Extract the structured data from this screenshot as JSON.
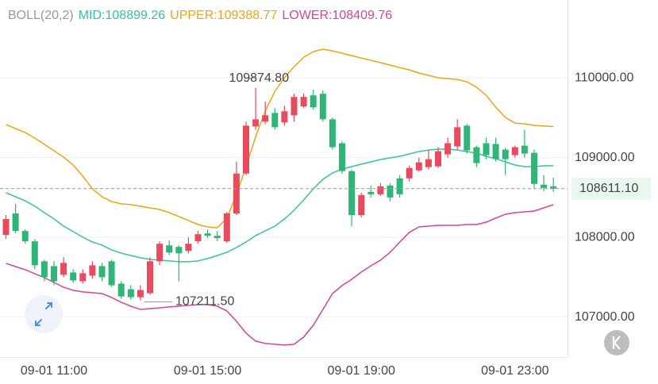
{
  "chart_data": {
    "type": "candlestick",
    "categories": [
      null,
      null,
      null,
      null,
      null,
      "09-01 11:00",
      null,
      null,
      null,
      null,
      null,
      null,
      null,
      null,
      null,
      null,
      null,
      null,
      null,
      null,
      null,
      "09-01 15:00",
      null,
      null,
      null,
      null,
      null,
      null,
      null,
      null,
      null,
      null,
      null,
      null,
      null,
      null,
      null,
      "09-01 19:00",
      null,
      null,
      null,
      null,
      null,
      null,
      null,
      null,
      null,
      null,
      null,
      null,
      null,
      null,
      null,
      "09-01 23:00",
      null,
      null,
      null,
      null
    ],
    "open": [
      108030,
      108300,
      108080,
      107950,
      107700,
      107640,
      107530,
      107560,
      107450,
      107520,
      107640,
      107700,
      107420,
      107350,
      107250,
      107300,
      107700,
      107900,
      107880,
      107830,
      107950,
      108050,
      108020,
      107950,
      108300,
      108800,
      109390,
      109450,
      109560,
      109440,
      109530,
      109640,
      109780,
      109800,
      109480,
      109180,
      108830,
      108280,
      108570,
      108540,
      108650,
      108740,
      108740,
      108840,
      108880,
      108890,
      109040,
      109140,
      109400,
      109130,
      109180,
      109170,
      109100,
      109030,
      109150,
      109060,
      108660,
      108640
    ],
    "high": [
      108280,
      108420,
      108100,
      107980,
      107720,
      107700,
      107750,
      107600,
      107600,
      107700,
      107680,
      107720,
      107450,
      107400,
      107400,
      107750,
      107950,
      107960,
      107900,
      108000,
      108080,
      108100,
      108080,
      108320,
      108950,
      109450,
      109874.8,
      109700,
      109620,
      109650,
      109800,
      109800,
      109850,
      109840,
      109500,
      109200,
      108850,
      108560,
      108650,
      108680,
      108680,
      108780,
      108900,
      109000,
      109100,
      109130,
      109250,
      109480,
      109420,
      109150,
      109250,
      109250,
      109120,
      109150,
      109350,
      109100,
      108780,
      108750
    ],
    "low": [
      107980,
      108050,
      107920,
      107600,
      107450,
      107400,
      107500,
      107430,
      107420,
      107480,
      107450,
      107380,
      107230,
      107220,
      107211.5,
      107280,
      107650,
      107780,
      107450,
      107800,
      107920,
      107990,
      107950,
      107930,
      108280,
      108780,
      109350,
      109420,
      109350,
      109400,
      109450,
      109620,
      109600,
      109450,
      109100,
      108800,
      108140,
      108250,
      108500,
      108520,
      108450,
      108500,
      108700,
      108820,
      108850,
      108870,
      109000,
      109100,
      109050,
      108880,
      108980,
      108950,
      108780,
      109000,
      109000,
      108620,
      108580,
      108570
    ],
    "close": [
      108230,
      108080,
      107950,
      107650,
      107500,
      107450,
      107680,
      107460,
      107550,
      107650,
      107500,
      107400,
      107260,
      107250,
      107340,
      107700,
      107920,
      107810,
      107800,
      107920,
      108040,
      108020,
      107990,
      108300,
      108800,
      109400,
      109480,
      109530,
      109380,
      109580,
      109760,
      109760,
      109630,
      109480,
      109130,
      108830,
      108280,
      108530,
      108540,
      108640,
      108500,
      108540,
      108870,
      108940,
      108980,
      109080,
      109180,
      109380,
      109090,
      108930,
      109030,
      108980,
      108980,
      109130,
      109050,
      108670,
      108620,
      108611.1
    ],
    "up_color": "#ea4a5e",
    "down_color": "#2fb676",
    "ylim": [
      106500,
      110975
    ],
    "yticks": [
      {
        "value": 110000,
        "label": "110000.00"
      },
      {
        "value": 109000,
        "label": "109000.00"
      },
      {
        "value": 108000,
        "label": "108000.00"
      },
      {
        "value": 107000,
        "label": "107000.00"
      }
    ],
    "grid": true,
    "last_price": {
      "value": 108611.1,
      "label": "108611.10"
    },
    "high_label": "109874.80",
    "low_label": "107211.50",
    "indicator": {
      "label": "BOLL(20,2)",
      "separator": ":",
      "series": [
        {
          "name": "MID",
          "color": "#36c2a6",
          "values": [
            108559,
            108509,
            108459,
            108390,
            108310,
            108231,
            108141,
            108072,
            108002,
            107942,
            107903,
            107843,
            107803,
            107773,
            107744,
            107724,
            107714,
            107704,
            107694,
            107694,
            107704,
            107734,
            107773,
            107813,
            107873,
            107942,
            108022,
            108082,
            108141,
            108231,
            108340,
            108469,
            108608,
            108728,
            108807,
            108857,
            108887,
            108917,
            108946,
            108976,
            108996,
            109016,
            109046,
            109076,
            109095,
            109105,
            109105,
            109095,
            109076,
            109056,
            109016,
            108986,
            108946,
            108907,
            108887,
            108887,
            108897,
            108899.26
          ]
        },
        {
          "name": "UPPER",
          "color": "#eda514",
          "values": [
            109414,
            109364,
            109314,
            109245,
            109165,
            109086,
            109006,
            108907,
            108767,
            108608,
            108509,
            108449,
            108420,
            108410,
            108390,
            108370,
            108350,
            108310,
            108261,
            108211,
            108161,
            108131,
            108121,
            108241,
            108539,
            108887,
            109264,
            109583,
            109831,
            110000,
            110139,
            110258,
            110328,
            110358,
            110338,
            110308,
            110278,
            110248,
            110219,
            110189,
            110159,
            110129,
            110099,
            110060,
            110030,
            110000,
            109990,
            109980,
            109950,
            109881,
            109781,
            109632,
            109503,
            109433,
            109423,
            109404,
            109395,
            109388.77
          ]
        },
        {
          "name": "LOWER",
          "color": "#d6439b",
          "values": [
            107674,
            107634,
            107595,
            107545,
            107495,
            107435,
            107376,
            107336,
            107316,
            107306,
            107296,
            107247,
            107187,
            107137,
            107097,
            107107,
            107117,
            107127,
            107137,
            107147,
            107157,
            107157,
            107137,
            107078,
            106948,
            106799,
            106700,
            106670,
            106660,
            106650,
            106660,
            106750,
            106899,
            107097,
            107296,
            107396,
            107475,
            107565,
            107644,
            107714,
            107813,
            107942,
            108062,
            108131,
            108141,
            108151,
            108151,
            108151,
            108161,
            108161,
            108191,
            108241,
            108290,
            108310,
            108320,
            108330,
            108370,
            108409.76
          ]
        }
      ]
    }
  }
}
